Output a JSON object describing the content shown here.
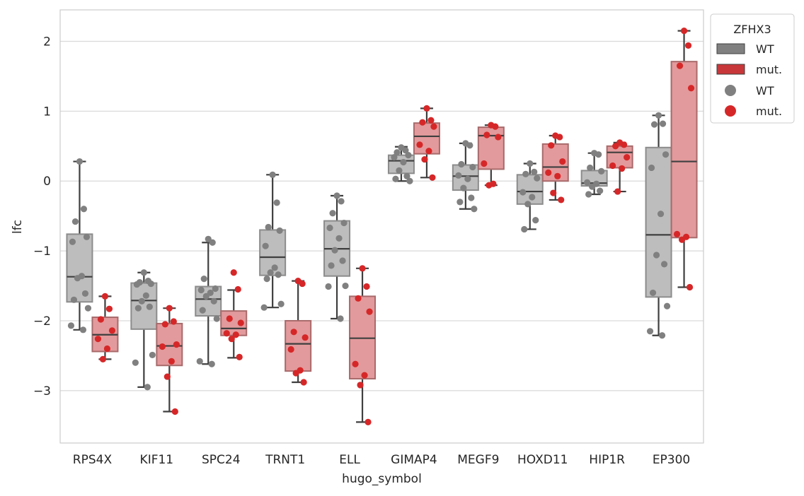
{
  "chart_data": {
    "type": "box",
    "xlabel": "hugo_symbol",
    "ylabel": "lfc",
    "ylim": [
      -3.75,
      2.45
    ],
    "yticks": [
      -3,
      -2,
      -1,
      0,
      1,
      2
    ],
    "ytick_labels": [
      "−3",
      "−2",
      "−1",
      "0",
      "1",
      "2"
    ],
    "grid": true,
    "legend": {
      "title": "ZFHX3",
      "position": "top-right-outside",
      "entries": [
        {
          "label": "WT",
          "kind": "box",
          "color": "#808080"
        },
        {
          "label": "mut.",
          "kind": "box",
          "color": "#c8373a"
        },
        {
          "label": "WT",
          "kind": "point",
          "color": "#808080"
        },
        {
          "label": "mut.",
          "kind": "point",
          "color": "#d62728"
        }
      ]
    },
    "colors": {
      "wt_box": "#bdbdbd",
      "wt_edge": "#8c8c8c",
      "wt_point": "#808080",
      "mut_box": "#e39a9c",
      "mut_edge": "#a86a6b",
      "mut_point": "#d62728",
      "line": "#3f3f3f"
    },
    "categories": [
      "RPS4X",
      "KIF11",
      "SPC24",
      "TRNT1",
      "ELL",
      "GIMAP4",
      "MEGF9",
      "HOXD11",
      "HIP1R",
      "EP300"
    ],
    "series": [
      {
        "name": "WT",
        "boxes": [
          {
            "whislo": -2.13,
            "q1": -1.73,
            "med": -1.37,
            "q3": -0.76,
            "whishi": 0.28
          },
          {
            "whislo": -2.95,
            "q1": -2.12,
            "med": -1.71,
            "q3": -1.46,
            "whishi": -1.31
          },
          {
            "whislo": -2.62,
            "q1": -1.93,
            "med": -1.69,
            "q3": -1.51,
            "whishi": -0.88
          },
          {
            "whislo": -1.81,
            "q1": -1.35,
            "med": -1.09,
            "q3": -0.7,
            "whishi": 0.09
          },
          {
            "whislo": -1.97,
            "q1": -1.36,
            "med": -0.97,
            "q3": -0.57,
            "whishi": -0.21
          },
          {
            "whislo": 0.0,
            "q1": 0.11,
            "med": 0.29,
            "q3": 0.37,
            "whishi": 0.49
          },
          {
            "whislo": -0.4,
            "q1": -0.13,
            "med": 0.07,
            "q3": 0.23,
            "whishi": 0.54
          },
          {
            "whislo": -0.69,
            "q1": -0.33,
            "med": -0.15,
            "q3": 0.09,
            "whishi": 0.25
          },
          {
            "whislo": -0.19,
            "q1": -0.07,
            "med": -0.03,
            "q3": 0.15,
            "whishi": 0.4
          },
          {
            "whislo": -2.21,
            "q1": -1.66,
            "med": -0.77,
            "q3": 0.48,
            "whishi": 0.94
          }
        ],
        "points": [
          [
            0.28,
            -0.4,
            -0.58,
            -0.8,
            -0.87,
            -1.36,
            -1.39,
            -1.61,
            -1.7,
            -1.82,
            -2.07,
            -2.13
          ],
          [
            -1.31,
            -1.43,
            -1.45,
            -1.47,
            -1.48,
            -1.64,
            -1.72,
            -1.8,
            -1.82,
            -2.49,
            -2.6,
            -2.95
          ],
          [
            -0.83,
            -0.88,
            -1.4,
            -1.54,
            -1.56,
            -1.6,
            -1.65,
            -1.72,
            -1.85,
            -1.97,
            -2.58,
            -2.62
          ],
          [
            0.09,
            -0.31,
            -0.66,
            -0.71,
            -0.93,
            -1.24,
            -1.31,
            -1.34,
            -1.4,
            -1.76,
            -1.81
          ],
          [
            -0.21,
            -0.29,
            -0.46,
            -0.6,
            -0.67,
            -0.82,
            -0.99,
            -1.14,
            -1.21,
            -1.5,
            -1.51,
            -1.97
          ],
          [
            0.48,
            0.44,
            0.41,
            0.37,
            0.34,
            0.27,
            0.15,
            0.07,
            0.03,
            0.0
          ],
          [
            0.54,
            0.51,
            0.24,
            0.2,
            0.08,
            0.03,
            -0.1,
            -0.24,
            -0.3,
            -0.4
          ],
          [
            0.25,
            0.13,
            0.1,
            0.04,
            -0.16,
            -0.23,
            -0.33,
            -0.56,
            -0.69
          ],
          [
            0.4,
            0.38,
            0.19,
            0.14,
            -0.02,
            -0.04,
            -0.08,
            -0.14,
            -0.19
          ],
          [
            0.94,
            0.82,
            0.81,
            0.38,
            0.19,
            -0.47,
            -1.06,
            -1.19,
            -1.6,
            -1.79,
            -2.15,
            -2.21
          ]
        ]
      },
      {
        "name": "mut.",
        "boxes": [
          {
            "whislo": -2.55,
            "q1": -2.44,
            "med": -2.2,
            "q3": -1.95,
            "whishi": -1.65
          },
          {
            "whislo": -3.3,
            "q1": -2.64,
            "med": -2.36,
            "q3": -2.04,
            "whishi": -1.82
          },
          {
            "whislo": -2.53,
            "q1": -2.21,
            "med": -2.11,
            "q3": -1.86,
            "whishi": -1.56
          },
          {
            "whislo": -2.88,
            "q1": -2.72,
            "med": -2.33,
            "q3": -2.0,
            "whishi": -1.43
          },
          {
            "whislo": -3.45,
            "q1": -2.83,
            "med": -2.25,
            "q3": -1.65,
            "whishi": -1.25
          },
          {
            "whislo": 0.05,
            "q1": 0.39,
            "med": 0.64,
            "q3": 0.83,
            "whishi": 1.04
          },
          {
            "whislo": -0.06,
            "q1": 0.17,
            "med": 0.65,
            "q3": 0.77,
            "whishi": 0.8
          },
          {
            "whislo": -0.27,
            "q1": 0.0,
            "med": 0.2,
            "q3": 0.53,
            "whishi": 0.65
          },
          {
            "whislo": -0.15,
            "q1": 0.19,
            "med": 0.41,
            "q3": 0.5,
            "whishi": 0.55
          },
          {
            "whislo": -1.52,
            "q1": -0.81,
            "med": 0.28,
            "q3": 1.71,
            "whishi": 2.15
          }
        ],
        "points": [
          [
            -1.65,
            -1.83,
            -1.98,
            -2.14,
            -2.26,
            -2.4,
            -2.55
          ],
          [
            -1.82,
            -2.01,
            -2.05,
            -2.34,
            -2.37,
            -2.58,
            -2.8,
            -3.3
          ],
          [
            -1.31,
            -1.55,
            -1.97,
            -2.03,
            -2.18,
            -2.2,
            -2.26,
            -2.52
          ],
          [
            -1.43,
            -1.47,
            -2.16,
            -2.24,
            -2.41,
            -2.71,
            -2.75,
            -2.88
          ],
          [
            -1.25,
            -1.51,
            -1.68,
            -1.87,
            -2.62,
            -2.78,
            -2.92,
            -3.45
          ],
          [
            1.04,
            0.87,
            0.84,
            0.78,
            0.52,
            0.43,
            0.31,
            0.05
          ],
          [
            0.8,
            0.78,
            0.66,
            0.63,
            0.25,
            -0.04,
            -0.06
          ],
          [
            0.65,
            0.63,
            0.51,
            0.28,
            0.12,
            0.07,
            -0.17,
            -0.27
          ],
          [
            0.55,
            0.52,
            0.5,
            0.34,
            0.22,
            0.18,
            -0.15
          ],
          [
            2.15,
            1.94,
            1.65,
            1.33,
            -0.76,
            -0.8,
            -0.84,
            -1.52
          ]
        ]
      }
    ]
  }
}
